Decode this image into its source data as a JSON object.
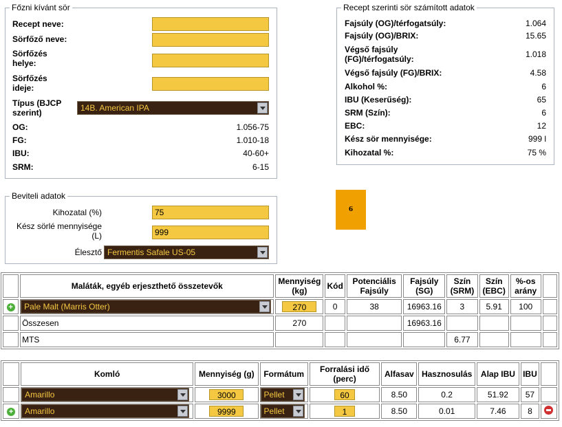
{
  "wanted": {
    "legend": "Főzni kívánt sör",
    "recipe_label": "Recept neve:",
    "recipe_value": "",
    "brewer_label": "Sörfőző neve:",
    "brewer_value": "",
    "place_label": "Sörfőzés helye:",
    "place_value": "",
    "time_label": "Sörfőzés ideje:",
    "time_value": "",
    "type_label": "Típus (BJCP szerint)",
    "type_value": "14B. American IPA",
    "og_label": "OG:",
    "og_value": "1.056-75",
    "fg_label": "FG:",
    "fg_value": "1.010-18",
    "ibu_label": "IBU:",
    "ibu_value": "40-60+",
    "srm_label": "SRM:",
    "srm_value": "6-15"
  },
  "calc": {
    "legend": "Recept szerinti sör számított adatok",
    "rows": [
      {
        "label": "Fajsúly (OG)/térfogatsúly:",
        "value": "1.064"
      },
      {
        "label": "Fajsúly (OG)/BRIX:",
        "value": "15.65"
      },
      {
        "label": "Végső fajsúly (FG)/térfogatsúly:",
        "value": "1.018"
      },
      {
        "label": "Végső fajsúly (FG)/BRIX:",
        "value": "4.58"
      },
      {
        "label": "Alkohol %:",
        "value": "6"
      },
      {
        "label": "IBU (Keserűség):",
        "value": "65"
      },
      {
        "label": "SRM (Szín):",
        "value": "6"
      },
      {
        "label": "EBC:",
        "value": "12"
      },
      {
        "label": "Kész sör mennyisége:",
        "value": "999 l"
      },
      {
        "label": "Kihozatal %:",
        "value": "75 %"
      }
    ]
  },
  "input": {
    "legend": "Beviteli adatok",
    "efficiency_label": "Kihozatal (%)",
    "efficiency_value": "75",
    "wort_label": "Kész sörlé mennyisége (L)",
    "wort_value": "999",
    "yeast_label": "Élesztő",
    "yeast_value": "Fermentis Safale US-05"
  },
  "color_badge": {
    "value": "6",
    "color": "#f0a000"
  },
  "malts": {
    "headers": [
      "Maláták, egyéb erjeszthető összetevők",
      "Mennyiség (kg)",
      "Kód",
      "Potenciális Fajsúly",
      "Fajsúly (SG)",
      "Szín (SRM)",
      "Szín (EBC)",
      "%-os arány"
    ],
    "row": {
      "name": "Pale Malt (Marris Otter)",
      "amount": "270",
      "code": "0",
      "potential": "38",
      "sg": "16963.16",
      "srm": "3",
      "ebc": "5.91",
      "pct": "100"
    },
    "total": {
      "label": "Összesen",
      "amount": "270",
      "sg": "16963.16"
    },
    "mts": {
      "label": "MTS",
      "srm": "6.77"
    }
  },
  "hops": {
    "headers": [
      "Komló",
      "Mennyiség (g)",
      "Formátum",
      "Forralási idő (perc)",
      "Alfasav",
      "Hasznosulás",
      "Alap IBU",
      "IBU"
    ],
    "rows": [
      {
        "name": "Amarillo",
        "amount": "3000",
        "format": "Pellet",
        "time": "60",
        "alpha": "8.50",
        "util": "0.2",
        "base_ibu": "51.92",
        "ibu": "57"
      },
      {
        "name": "Amarillo",
        "amount": "9999",
        "format": "Pellet",
        "time": "1",
        "alpha": "8.50",
        "util": "0.01",
        "base_ibu": "7.46",
        "ibu": "8"
      }
    ]
  }
}
